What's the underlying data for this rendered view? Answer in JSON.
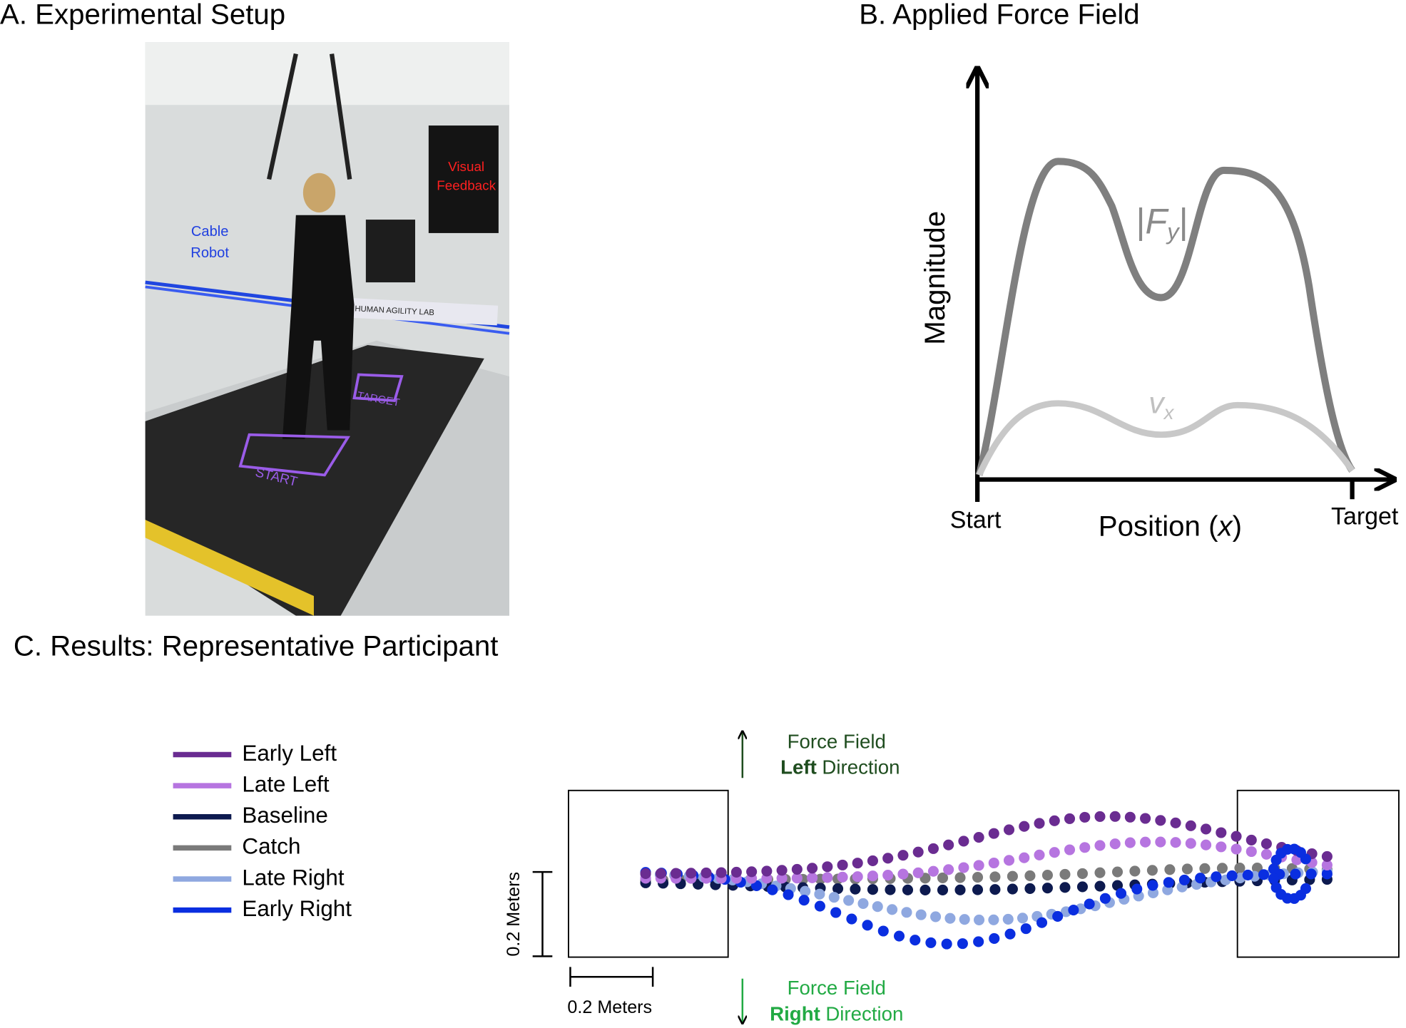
{
  "panel_a": {
    "title": "A. Experimental Setup",
    "photo_labels": {
      "visual_feedback": [
        "Visual",
        "Feedback"
      ],
      "cable_robot": [
        "Cable",
        "Robot"
      ],
      "lab_sign": "HUMAN AGILITY LAB",
      "target": "TARGET",
      "start": "START"
    }
  },
  "panel_b": {
    "title": "B. Applied Force Field",
    "y_axis_label": "Magnitude",
    "x_axis_label": {
      "text": "Position (",
      "variable": "x",
      "close": ")"
    },
    "start_label": "Start",
    "target_label": "Target",
    "force_label": {
      "open": "|",
      "symbol": "F",
      "subscript": "y",
      "close": "|"
    },
    "velocity_label": {
      "symbol": "v",
      "subscript": "x"
    }
  },
  "panel_c": {
    "title": "C. Results: Representative Participant",
    "legend": [
      "Early Left",
      "Late Left",
      "Baseline",
      "Catch",
      "Late Right",
      "Early Right"
    ],
    "left_arrow": {
      "line1": "Force Field",
      "bold": "Left",
      "rest": "Direction"
    },
    "right_arrow": {
      "line1": "Force Field",
      "bold": "Right",
      "rest": "Direction"
    },
    "vertical_scale": "0.2 Meters",
    "horizontal_scale": "0.2 Meters"
  }
}
